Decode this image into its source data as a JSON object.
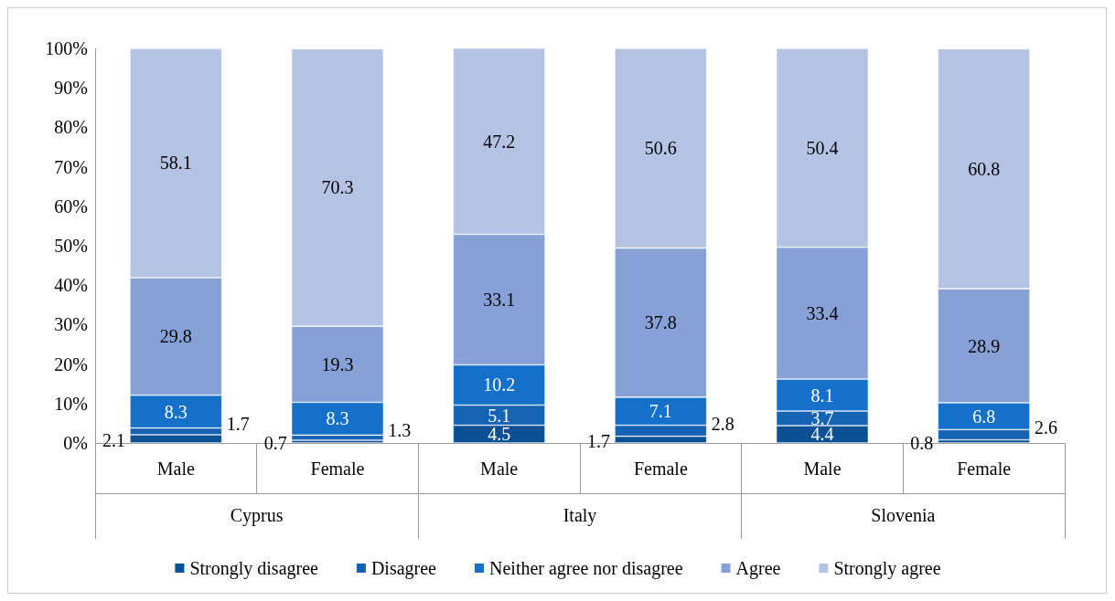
{
  "chart_data": {
    "type": "bar",
    "stacked": true,
    "data_labels": true,
    "categories": [
      "Male",
      "Female",
      "Male",
      "Female",
      "Male",
      "Female"
    ],
    "annotations": [
      "Cyprus",
      "Italy",
      "Slovenia"
    ],
    "series": [
      {
        "name": "Strongly disagree",
        "color": "#0b4f94",
        "values": [
          2.1,
          0.7,
          4.5,
          1.7,
          4.4,
          0.8
        ]
      },
      {
        "name": "Disagree",
        "color": "#1563b3",
        "values": [
          1.7,
          1.3,
          5.1,
          2.8,
          3.7,
          2.6
        ]
      },
      {
        "name": "Neither agree nor disagree",
        "color": "#1470c8",
        "values": [
          8.3,
          8.3,
          10.2,
          7.1,
          8.1,
          6.8
        ]
      },
      {
        "name": "Agree",
        "color": "#86a1d6",
        "values": [
          29.8,
          19.3,
          33.1,
          37.8,
          33.4,
          28.9
        ]
      },
      {
        "name": "Strongly agree",
        "color": "#b4c3e3",
        "values": [
          58.1,
          70.3,
          47.2,
          50.6,
          50.4,
          60.8
        ]
      }
    ],
    "ylim": [
      0,
      100
    ],
    "yticks": [
      {
        "value": 0,
        "label": "0%"
      },
      {
        "value": 10,
        "label": "10%"
      },
      {
        "value": 20,
        "label": "20%"
      },
      {
        "value": 30,
        "label": "30%"
      },
      {
        "value": 40,
        "label": "40%"
      },
      {
        "value": 50,
        "label": "50%"
      },
      {
        "value": 60,
        "label": "60%"
      },
      {
        "value": 70,
        "label": "70%"
      },
      {
        "value": 80,
        "label": "80%"
      },
      {
        "value": 90,
        "label": "90%"
      },
      {
        "value": 100,
        "label": "100%"
      }
    ],
    "grid": false,
    "legend": "bottom"
  }
}
